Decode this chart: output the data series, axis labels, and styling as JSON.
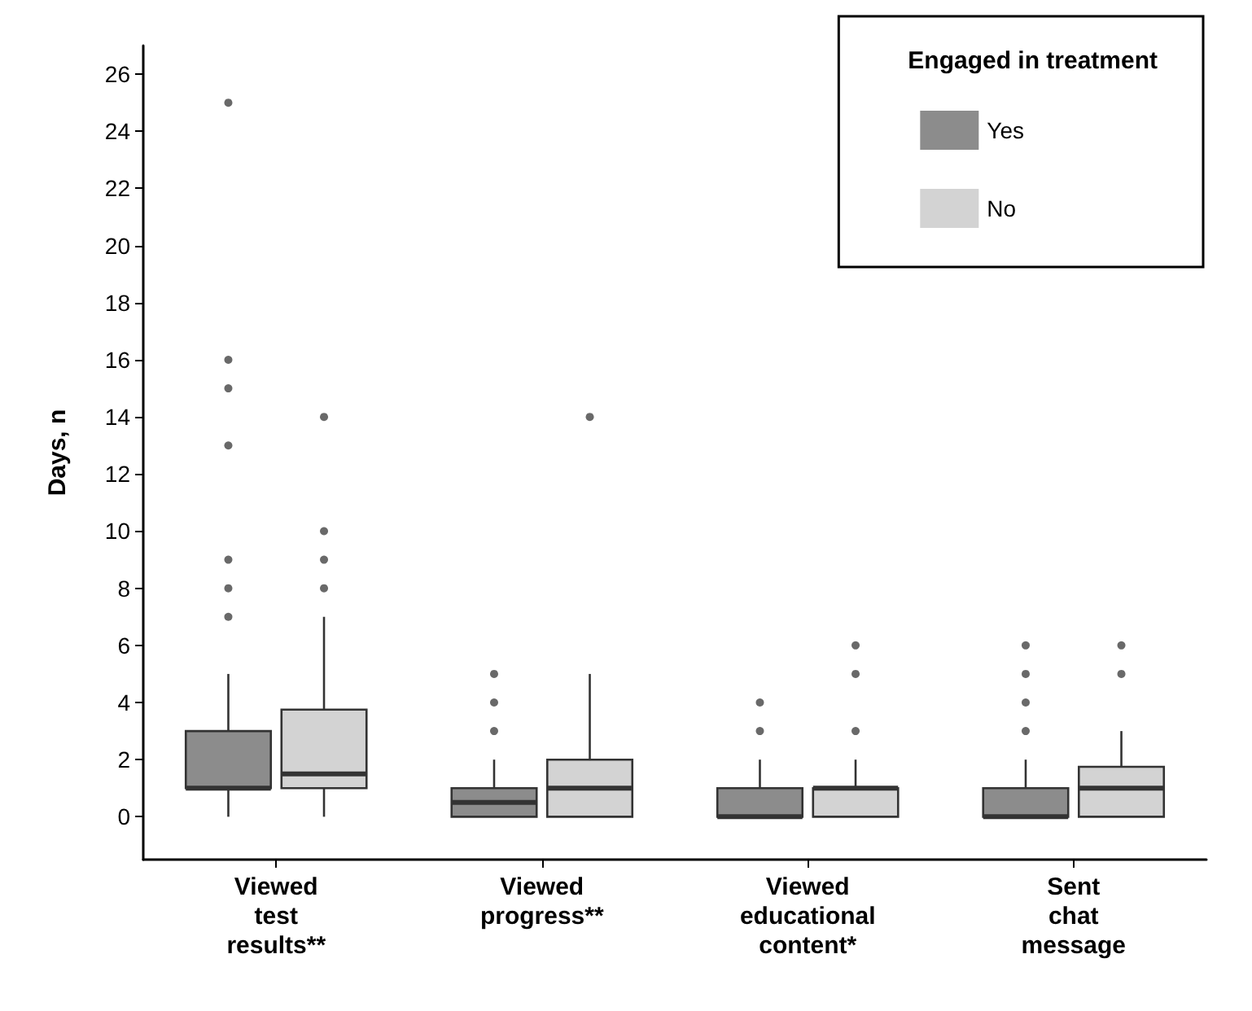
{
  "chart_data": {
    "type": "box",
    "ylabel": "Days, n",
    "legend_title": "Engaged in treatment",
    "legend": "top right",
    "grid": false,
    "marker": "circle",
    "categories": [
      "Viewed\ntest\nresults**",
      "Viewed\nprogress**",
      "Viewed\neducational\ncontent*",
      "Sent\nchat\nmessage"
    ],
    "ylim": [
      -1.5,
      27
    ],
    "yticks": [
      0,
      2,
      4,
      6,
      8,
      10,
      12,
      14,
      16,
      18,
      20,
      22,
      24,
      26
    ],
    "series": [
      {
        "name": "Yes",
        "color": "#8c8c8c",
        "boxes": [
          {
            "low": 0,
            "q1": 1,
            "median": 1,
            "q3": 3,
            "high": 5,
            "outliers": [
              7,
              8,
              9,
              13,
              15,
              16,
              25
            ]
          },
          {
            "low": 0,
            "q1": 0,
            "median": 0.5,
            "q3": 1,
            "high": 2,
            "outliers": [
              3,
              4,
              5
            ]
          },
          {
            "low": 0,
            "q1": 0,
            "median": 0,
            "q3": 1,
            "high": 2,
            "outliers": [
              3,
              4
            ]
          },
          {
            "low": 0,
            "q1": 0,
            "median": 0,
            "q3": 1,
            "high": 2,
            "outliers": [
              3,
              4,
              5,
              6
            ]
          }
        ]
      },
      {
        "name": "No",
        "color": "#d3d3d3",
        "boxes": [
          {
            "low": 0,
            "q1": 1,
            "median": 1.5,
            "q3": 3.75,
            "high": 7,
            "outliers": [
              8,
              9,
              10,
              14
            ]
          },
          {
            "low": 0,
            "q1": 0,
            "median": 1,
            "q3": 2,
            "high": 5,
            "outliers": [
              14
            ]
          },
          {
            "low": 0,
            "q1": 0,
            "median": 1,
            "q3": 1,
            "high": 2,
            "outliers": [
              3,
              5,
              6
            ]
          },
          {
            "low": 0,
            "q1": 0,
            "median": 1,
            "q3": 1.75,
            "high": 3,
            "outliers": [
              5,
              6
            ]
          }
        ]
      }
    ]
  }
}
